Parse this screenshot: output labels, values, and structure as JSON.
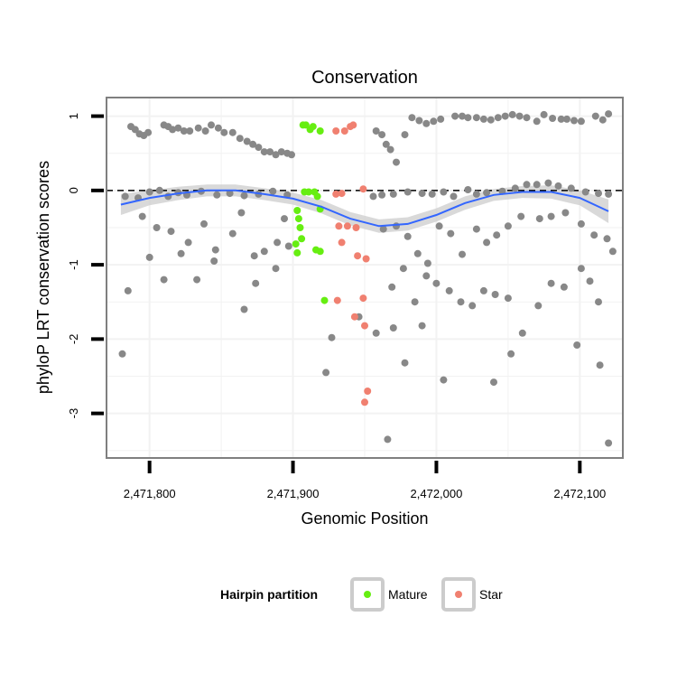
{
  "chart_data": {
    "type": "scatter",
    "title": "Conservation",
    "xlabel": "Genomic Position",
    "ylabel": "phyloP LRT conservation scores",
    "xlim": [
      2471770,
      2472130
    ],
    "ylim": [
      -3.6,
      1.25
    ],
    "x_ticks": [
      2471800,
      2471900,
      2472000,
      2472100
    ],
    "x_tick_labels": [
      "2,471,800",
      "2,471,900",
      "2,472,000",
      "2,472,100"
    ],
    "y_ticks": [
      -3,
      -2,
      -1,
      0,
      1
    ],
    "y_tick_labels": [
      "-3",
      "-2",
      "-1",
      "0",
      "1"
    ],
    "reference_line": {
      "y": 0,
      "style": "dashed",
      "color": "#000000"
    },
    "grid": true,
    "legend": {
      "title": "Hairpin partition",
      "position": "bottom",
      "entries": [
        {
          "label": "Mature",
          "color": "#66ee11"
        },
        {
          "label": "Star",
          "color": "#f08070"
        }
      ]
    },
    "colors": {
      "background": "#888888",
      "mature": "#66ee11",
      "star": "#f08070",
      "smooth_line": "#3366ff",
      "smooth_band": "#cccccc"
    },
    "smooth": {
      "x": [
        2471780,
        2471800,
        2471820,
        2471840,
        2471860,
        2471880,
        2471900,
        2471920,
        2471940,
        2471960,
        2471980,
        2472000,
        2472020,
        2472040,
        2472060,
        2472080,
        2472100,
        2472120
      ],
      "y": [
        -0.19,
        -0.1,
        -0.04,
        0.0,
        0.0,
        -0.05,
        -0.11,
        -0.22,
        -0.38,
        -0.48,
        -0.45,
        -0.33,
        -0.17,
        -0.06,
        -0.02,
        -0.02,
        -0.1,
        -0.28
      ],
      "se": [
        0.14,
        0.1,
        0.09,
        0.08,
        0.08,
        0.08,
        0.08,
        0.09,
        0.09,
        0.09,
        0.09,
        0.09,
        0.09,
        0.08,
        0.08,
        0.09,
        0.1,
        0.16
      ]
    },
    "series": [
      {
        "name": "Mature",
        "points": [
          [
            2471907,
            0.88
          ],
          [
            2471909,
            0.88
          ],
          [
            2471912,
            0.82
          ],
          [
            2471914,
            0.86
          ],
          [
            2471919,
            0.8
          ],
          [
            2471908,
            -0.02
          ],
          [
            2471911,
            -0.02
          ],
          [
            2471915,
            -0.02
          ],
          [
            2471917,
            -0.08
          ],
          [
            2471919,
            -0.25
          ],
          [
            2471903,
            -0.27
          ],
          [
            2471904,
            -0.38
          ],
          [
            2471905,
            -0.5
          ],
          [
            2471906,
            -0.65
          ],
          [
            2471902,
            -0.72
          ],
          [
            2471903,
            -0.84
          ],
          [
            2471916,
            -0.8
          ],
          [
            2471919,
            -0.82
          ],
          [
            2471922,
            -1.48
          ]
        ]
      },
      {
        "name": "Star",
        "points": [
          [
            2471930,
            0.8
          ],
          [
            2471936,
            0.8
          ],
          [
            2471940,
            0.86
          ],
          [
            2471942,
            0.88
          ],
          [
            2471930,
            -0.05
          ],
          [
            2471934,
            -0.04
          ],
          [
            2471949,
            0.02
          ],
          [
            2471932,
            -0.48
          ],
          [
            2471938,
            -0.48
          ],
          [
            2471944,
            -0.5
          ],
          [
            2471934,
            -0.7
          ],
          [
            2471945,
            -0.88
          ],
          [
            2471951,
            -0.92
          ],
          [
            2471931,
            -1.48
          ],
          [
            2471949,
            -1.45
          ],
          [
            2471943,
            -1.7
          ],
          [
            2471950,
            -1.82
          ],
          [
            2471952,
            -2.7
          ],
          [
            2471950,
            -2.85
          ]
        ]
      },
      {
        "name": "",
        "points": [
          [
            2471787,
            0.86
          ],
          [
            2471790,
            0.82
          ],
          [
            2471793,
            0.76
          ],
          [
            2471796,
            0.74
          ],
          [
            2471799,
            0.78
          ],
          [
            2471810,
            0.88
          ],
          [
            2471813,
            0.86
          ],
          [
            2471816,
            0.82
          ],
          [
            2471820,
            0.84
          ],
          [
            2471824,
            0.8
          ],
          [
            2471828,
            0.8
          ],
          [
            2471834,
            0.84
          ],
          [
            2471839,
            0.8
          ],
          [
            2471843,
            0.88
          ],
          [
            2471848,
            0.84
          ],
          [
            2471852,
            0.78
          ],
          [
            2471858,
            0.78
          ],
          [
            2471863,
            0.7
          ],
          [
            2471868,
            0.66
          ],
          [
            2471872,
            0.62
          ],
          [
            2471876,
            0.58
          ],
          [
            2471880,
            0.52
          ],
          [
            2471884,
            0.52
          ],
          [
            2471888,
            0.48
          ],
          [
            2471892,
            0.52
          ],
          [
            2471896,
            0.5
          ],
          [
            2471899,
            0.48
          ],
          [
            2471958,
            0.8
          ],
          [
            2471962,
            0.75
          ],
          [
            2471965,
            0.62
          ],
          [
            2471968,
            0.55
          ],
          [
            2471972,
            0.38
          ],
          [
            2471978,
            0.75
          ],
          [
            2471983,
            0.98
          ],
          [
            2471988,
            0.94
          ],
          [
            2471993,
            0.9
          ],
          [
            2471998,
            0.93
          ],
          [
            2472003,
            0.96
          ],
          [
            2472013,
            1.0
          ],
          [
            2472018,
            1.0
          ],
          [
            2472022,
            0.98
          ],
          [
            2472028,
            0.98
          ],
          [
            2472033,
            0.96
          ],
          [
            2472038,
            0.95
          ],
          [
            2472043,
            0.98
          ],
          [
            2472048,
            1.0
          ],
          [
            2472053,
            1.02
          ],
          [
            2472058,
            1.0
          ],
          [
            2472063,
            0.98
          ],
          [
            2472070,
            0.93
          ],
          [
            2472075,
            1.02
          ],
          [
            2472081,
            0.97
          ],
          [
            2472087,
            0.96
          ],
          [
            2472091,
            0.96
          ],
          [
            2472096,
            0.94
          ],
          [
            2472101,
            0.93
          ],
          [
            2472111,
            1.0
          ],
          [
            2472116,
            0.95
          ],
          [
            2472120,
            1.03
          ],
          [
            2471783,
            -0.08
          ],
          [
            2471792,
            -0.1
          ],
          [
            2471800,
            -0.02
          ],
          [
            2471807,
            0.0
          ],
          [
            2471813,
            -0.08
          ],
          [
            2471820,
            -0.03
          ],
          [
            2471826,
            -0.06
          ],
          [
            2471836,
            -0.01
          ],
          [
            2471847,
            -0.06
          ],
          [
            2471856,
            -0.04
          ],
          [
            2471866,
            -0.07
          ],
          [
            2471876,
            -0.05
          ],
          [
            2471886,
            -0.01
          ],
          [
            2471896,
            -0.06
          ],
          [
            2471956,
            -0.08
          ],
          [
            2471962,
            -0.06
          ],
          [
            2471970,
            -0.05
          ],
          [
            2471980,
            -0.02
          ],
          [
            2471990,
            -0.04
          ],
          [
            2471997,
            -0.05
          ],
          [
            2472005,
            -0.02
          ],
          [
            2472012,
            -0.08
          ],
          [
            2472022,
            0.01
          ],
          [
            2472028,
            -0.05
          ],
          [
            2472035,
            -0.03
          ],
          [
            2472046,
            -0.01
          ],
          [
            2472055,
            0.03
          ],
          [
            2472063,
            0.08
          ],
          [
            2472070,
            0.08
          ],
          [
            2472078,
            0.1
          ],
          [
            2472085,
            0.06
          ],
          [
            2472094,
            0.03
          ],
          [
            2472104,
            -0.02
          ],
          [
            2472113,
            -0.04
          ],
          [
            2472120,
            -0.05
          ],
          [
            2471795,
            -0.35
          ],
          [
            2471805,
            -0.5
          ],
          [
            2471815,
            -0.55
          ],
          [
            2471827,
            -0.7
          ],
          [
            2471838,
            -0.45
          ],
          [
            2471846,
            -0.8
          ],
          [
            2471858,
            -0.58
          ],
          [
            2471864,
            -0.3
          ],
          [
            2471873,
            -0.88
          ],
          [
            2471880,
            -0.82
          ],
          [
            2471889,
            -0.7
          ],
          [
            2471894,
            -0.38
          ],
          [
            2471963,
            -0.52
          ],
          [
            2471972,
            -0.48
          ],
          [
            2471980,
            -0.62
          ],
          [
            2471987,
            -0.85
          ],
          [
            2471994,
            -0.98
          ],
          [
            2472002,
            -0.48
          ],
          [
            2472010,
            -0.58
          ],
          [
            2472018,
            -0.86
          ],
          [
            2472028,
            -0.52
          ],
          [
            2472035,
            -0.7
          ],
          [
            2472042,
            -0.6
          ],
          [
            2472050,
            -0.48
          ],
          [
            2472059,
            -0.35
          ],
          [
            2472072,
            -0.38
          ],
          [
            2472080,
            -0.35
          ],
          [
            2472090,
            -0.3
          ],
          [
            2472101,
            -0.45
          ],
          [
            2472110,
            -0.6
          ],
          [
            2472119,
            -0.65
          ],
          [
            2472123,
            -0.82
          ],
          [
            2471785,
            -1.35
          ],
          [
            2471800,
            -0.9
          ],
          [
            2471810,
            -1.2
          ],
          [
            2471822,
            -0.85
          ],
          [
            2471833,
            -1.2
          ],
          [
            2471845,
            -0.95
          ],
          [
            2471866,
            -1.6
          ],
          [
            2471874,
            -1.25
          ],
          [
            2471888,
            -1.05
          ],
          [
            2471897,
            -0.75
          ],
          [
            2471969,
            -1.3
          ],
          [
            2471977,
            -1.05
          ],
          [
            2471985,
            -1.5
          ],
          [
            2471993,
            -1.15
          ],
          [
            2472000,
            -1.25
          ],
          [
            2472009,
            -1.35
          ],
          [
            2472017,
            -1.5
          ],
          [
            2472025,
            -1.55
          ],
          [
            2472033,
            -1.35
          ],
          [
            2472041,
            -1.4
          ],
          [
            2472050,
            -1.45
          ],
          [
            2472060,
            -1.92
          ],
          [
            2472071,
            -1.55
          ],
          [
            2472080,
            -1.25
          ],
          [
            2472089,
            -1.3
          ],
          [
            2472101,
            -1.05
          ],
          [
            2472107,
            -1.22
          ],
          [
            2472113,
            -1.5
          ],
          [
            2471781,
            -2.2
          ],
          [
            2471927,
            -1.98
          ],
          [
            2471946,
            -1.7
          ],
          [
            2471958,
            -1.92
          ],
          [
            2471970,
            -1.85
          ],
          [
            2471978,
            -2.32
          ],
          [
            2471990,
            -1.82
          ],
          [
            2472005,
            -2.55
          ],
          [
            2472040,
            -2.58
          ],
          [
            2472052,
            -2.2
          ],
          [
            2472098,
            -2.08
          ],
          [
            2472114,
            -2.35
          ],
          [
            2471923,
            -2.45
          ],
          [
            2471966,
            -3.35
          ],
          [
            2472120,
            -3.4
          ]
        ]
      }
    ]
  }
}
